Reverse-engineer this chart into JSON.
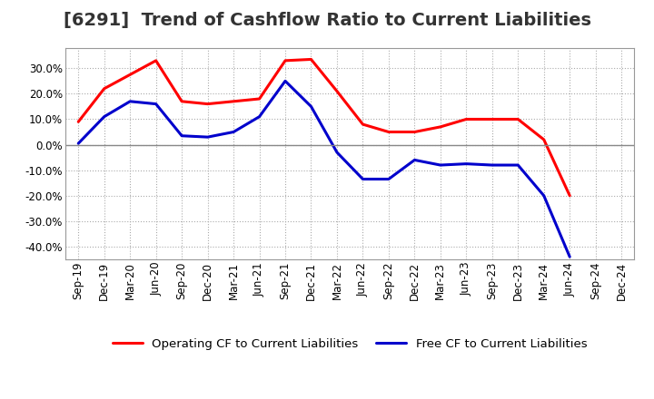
{
  "title": "[6291]  Trend of Cashflow Ratio to Current Liabilities",
  "x_labels": [
    "Sep-19",
    "Dec-19",
    "Mar-20",
    "Jun-20",
    "Sep-20",
    "Dec-20",
    "Mar-21",
    "Jun-21",
    "Sep-21",
    "Dec-21",
    "Mar-22",
    "Jun-22",
    "Sep-22",
    "Dec-22",
    "Mar-23",
    "Jun-23",
    "Sep-23",
    "Dec-23",
    "Mar-24",
    "Jun-24",
    "Sep-24",
    "Dec-24"
  ],
  "operating_cf": [
    9.0,
    22.0,
    27.5,
    33.0,
    17.0,
    16.0,
    17.0,
    18.0,
    33.0,
    33.5,
    21.0,
    8.0,
    5.0,
    5.0,
    7.0,
    10.0,
    10.0,
    10.0,
    2.0,
    -20.0,
    null,
    null
  ],
  "free_cf": [
    0.5,
    11.0,
    17.0,
    16.0,
    3.5,
    3.0,
    5.0,
    11.0,
    25.0,
    15.0,
    -3.0,
    -13.5,
    -13.5,
    -6.0,
    -8.0,
    -7.5,
    -8.0,
    -8.0,
    -20.0,
    -44.0,
    null,
    null
  ],
  "operating_color": "#ff0000",
  "free_color": "#0000cc",
  "ylim": [
    -45,
    38
  ],
  "yticks": [
    -40,
    -30,
    -20,
    -10,
    0,
    10,
    20,
    30
  ],
  "background_color": "#ffffff",
  "plot_bg_color": "#ffffff",
  "grid_color": "#aaaaaa",
  "zero_line_color": "#888888",
  "legend_op": "Operating CF to Current Liabilities",
  "legend_free": "Free CF to Current Liabilities",
  "linewidth": 2.2,
  "title_fontsize": 14,
  "title_color": "#333333",
  "tick_fontsize": 8.5,
  "legend_fontsize": 9.5
}
